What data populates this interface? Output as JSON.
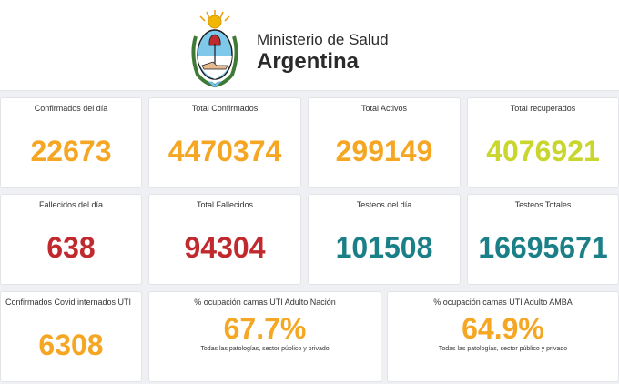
{
  "header": {
    "ministry": "Ministerio de Salud",
    "country": "Argentina"
  },
  "colors": {
    "orange": "#f5a623",
    "yellow_green": "#c8d62e",
    "red": "#c0292d",
    "teal": "#1a7f86"
  },
  "cards": {
    "confirmados_dia": {
      "label": "Confirmados del día",
      "value": "22673"
    },
    "total_confirmados": {
      "label": "Total Confirmados",
      "value": "4470374"
    },
    "total_activos": {
      "label": "Total Activos",
      "value": "299149"
    },
    "total_recuperados": {
      "label": "Total recuperados",
      "value": "4076921"
    },
    "fallecidos_dia": {
      "label": "Fallecidos del día",
      "value": "638"
    },
    "total_fallecidos": {
      "label": "Total Fallecidos",
      "value": "94304"
    },
    "testeos_dia": {
      "label": "Testeos del día",
      "value": "101508"
    },
    "testeos_totales": {
      "label": "Testeos Totales",
      "value": "16695671"
    },
    "internados_uti": {
      "label": "Confirmados Covid internados UTI",
      "value": "6308"
    },
    "uti_nacion": {
      "label": "% ocupación camas UTI Adulto Nación",
      "value": "67.7%",
      "sub": "Todas las patologías, sector público y privado"
    },
    "uti_amba": {
      "label": "% ocupación camas UTI Adulto AMBA",
      "value": "64.9%",
      "sub": "Todas las patologías, sector público y privado"
    }
  }
}
